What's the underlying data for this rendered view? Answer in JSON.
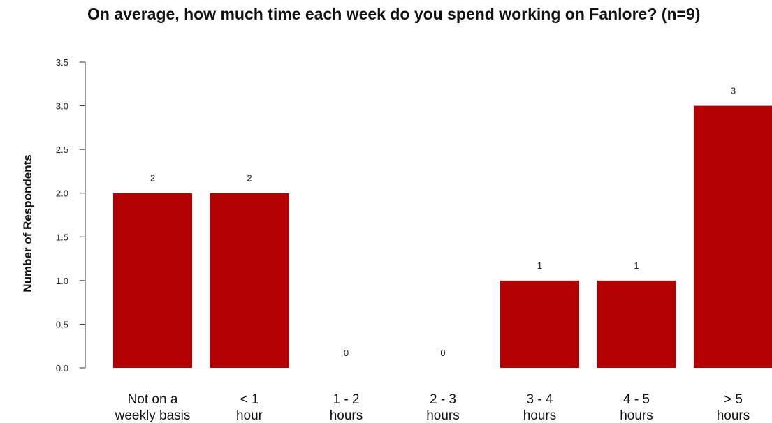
{
  "chart_data": {
    "type": "bar",
    "title": "On average, how much time each week do you spend working on Fanlore? (n=9)",
    "xlabel": "",
    "ylabel": "Number of Respondents",
    "categories": [
      "Not on a weekly basis",
      "< 1 hour",
      "1 - 2 hours",
      "2 - 3 hours",
      "3 - 4 hours",
      "4 - 5 hours",
      "> 5 hours"
    ],
    "category_lines": [
      [
        "Not on a",
        "weekly basis"
      ],
      [
        "< 1",
        "hour"
      ],
      [
        "1 - 2",
        "hours"
      ],
      [
        "2 - 3",
        "hours"
      ],
      [
        "3 - 4",
        "hours"
      ],
      [
        "4 - 5",
        "hours"
      ],
      [
        "> 5",
        "hours"
      ]
    ],
    "values": [
      2,
      2,
      0,
      0,
      1,
      1,
      3
    ],
    "ylim": [
      0,
      3.5
    ],
    "yticks": [
      "0.0",
      "0.5",
      "1.0",
      "1.5",
      "2.0",
      "2.5",
      "3.0",
      "3.5"
    ],
    "bar_color": "#b30000",
    "grid": false,
    "legend": "none"
  }
}
